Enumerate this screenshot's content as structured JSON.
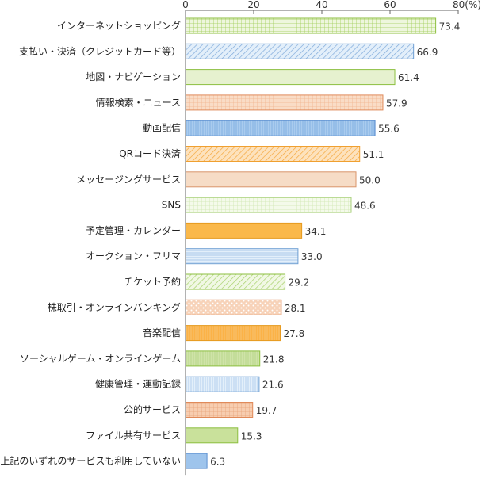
{
  "chart_data": {
    "type": "bar",
    "orientation": "horizontal",
    "title": "",
    "xlabel": "",
    "ylabel": "",
    "xlim": [
      0,
      80
    ],
    "ticks": [
      0,
      20,
      40,
      60,
      80
    ],
    "tick_labels": [
      "0",
      "20",
      "40",
      "60",
      "80(%)"
    ],
    "grid": false,
    "categories": [
      "インターネットショッピング",
      "支払い・決済（クレジットカード等）",
      "地図・ナビゲーション",
      "情報検索・ニュース",
      "動画配信",
      "QRコード決済",
      "メッセージングサービス",
      "SNS",
      "予定管理・カレンダー",
      "オークション・フリマ",
      "チケット予約",
      "株取引・オンラインバンキング",
      "音楽配信",
      "ソーシャルゲーム・オンラインゲーム",
      "健康管理・運動記録",
      "公的サービス",
      "ファイル共有サービス",
      "上記のいずれのサービスも利用していない"
    ],
    "values": [
      73.4,
      66.9,
      61.4,
      57.9,
      55.6,
      51.1,
      50.0,
      48.6,
      34.1,
      33.0,
      29.2,
      28.1,
      27.8,
      21.8,
      21.6,
      19.7,
      15.3,
      6.3
    ],
    "value_labels": [
      "73.4",
      "66.9",
      "61.4",
      "57.9",
      "55.6",
      "51.1",
      "50.0",
      "48.6",
      "34.1",
      "33.0",
      "29.2",
      "28.1",
      "27.8",
      "21.8",
      "21.6",
      "19.7",
      "15.3",
      "6.3"
    ],
    "bar_styles": [
      {
        "fill": "#eef6dd",
        "stroke": "#8cbf3f",
        "pattern": "grid",
        "pcolor": "#9fcd55"
      },
      {
        "fill": "#e3effa",
        "stroke": "#6e9fd3",
        "pattern": "diag",
        "pcolor": "#7faadb"
      },
      {
        "fill": "#e6f1cf",
        "stroke": "#8cbf3f",
        "pattern": "none",
        "pcolor": ""
      },
      {
        "fill": "#f9dcc6",
        "stroke": "#e08a5a",
        "pattern": "grid",
        "pcolor": "#f1b58e"
      },
      {
        "fill": "#a9cbee",
        "stroke": "#5c8fd0",
        "pattern": "vlines",
        "pcolor": "#7aaae0"
      },
      {
        "fill": "#fde2bd",
        "stroke": "#f0a030",
        "pattern": "diag",
        "pcolor": "#f5a73c"
      },
      {
        "fill": "#f6dcc6",
        "stroke": "#d9956a",
        "pattern": "none",
        "pcolor": ""
      },
      {
        "fill": "#f4faea",
        "stroke": "#a8d07a",
        "pattern": "grid",
        "pcolor": "#cfe6b0"
      },
      {
        "fill": "#fab84a",
        "stroke": "#e69a1e",
        "pattern": "none",
        "pcolor": ""
      },
      {
        "fill": "#e3effa",
        "stroke": "#6e9fd3",
        "pattern": "hlines",
        "pcolor": "#9dc0e6"
      },
      {
        "fill": "#f1f8e4",
        "stroke": "#8cbf3f",
        "pattern": "diag",
        "pcolor": "#a6d16a"
      },
      {
        "fill": "#f7d2b8",
        "stroke": "#e08a5a",
        "pattern": "dots",
        "pcolor": "#ffffff"
      },
      {
        "fill": "#fbb247",
        "stroke": "#e69a1e",
        "pattern": "vlines",
        "pcolor": "#f7c57a"
      },
      {
        "fill": "#cfe3a8",
        "stroke": "#8cbf3f",
        "pattern": "vlines",
        "pcolor": "#b5d485"
      },
      {
        "fill": "#e3effa",
        "stroke": "#6e9fd3",
        "pattern": "vlines",
        "pcolor": "#a9c8ea"
      },
      {
        "fill": "#f7cdb0",
        "stroke": "#e08a5a",
        "pattern": "grid",
        "pcolor": "#e8a47a"
      },
      {
        "fill": "#c9e19b",
        "stroke": "#8cbf3f",
        "pattern": "none",
        "pcolor": ""
      },
      {
        "fill": "#9ec4ec",
        "stroke": "#5c8fd0",
        "pattern": "none",
        "pcolor": ""
      }
    ]
  }
}
